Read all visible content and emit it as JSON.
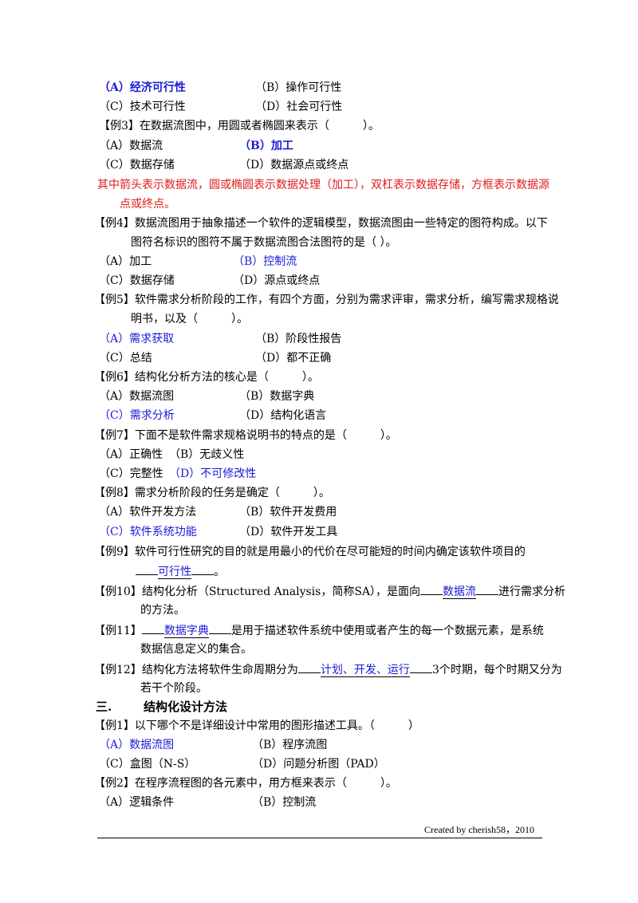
{
  "lines": [
    {
      "a": "（A）经济可行性",
      "b": "（B）操作可行性"
    },
    {
      "a": "（C）技术可行性",
      "b": "（D）社会可行性"
    },
    {
      "q": "【例3】在数据流图中，用圆或者椭圆来表示（　　　）。"
    },
    {
      "a": "（A）数据流",
      "b": "（B）加工"
    },
    {
      "a": "（C）数据存储",
      "b": "（D）数据源点或终点"
    },
    {
      "note1": "其中箭头表示数据流，圆或椭圆表示数据处理（加工），双杠表示数据存储，方框表示数据源",
      "note2": "点或终点。"
    },
    {
      "q1": "【例4】数据流图用于抽象描述一个软件的逻辑模型，数据流图由一些特定的图符构成。以下",
      "q2": "图符名标识的图符不属于数据流图合法图符的是（ ）。"
    },
    {
      "a": "（A）加工",
      "b": "（B）控制流"
    },
    {
      "a": "（C）数据存储",
      "b": "（D）源点或终点"
    },
    {
      "q1": "【例5】软件需求分析阶段的工作，有四个方面，分别为需求评审，需求分析，编写需求规格说",
      "q2": "明书，以及（　　　）。"
    },
    {
      "a": "（A）需求获取",
      "b": "（B）阶段性报告"
    },
    {
      "a": "（C）总结",
      "b": "（D）都不正确"
    },
    {
      "q": "【例6】结构化分析方法的核心是（　　　）。"
    },
    {
      "a": "（A）数据流图",
      "b": "（B）数据字典"
    },
    {
      "a": "（C）需求分析",
      "b": "（D）结构化语言"
    },
    {
      "q": "【例7】下面不是软件需求规格说明书的特点的是（　　　）。"
    },
    {
      "a": "（A）正确性",
      "b": "（B）无歧义性"
    },
    {
      "a": "（C）完整性",
      "b": "（D）不可修改性"
    },
    {
      "q": "【例8】需求分析阶段的任务是确定（　　　）。"
    },
    {
      "a": "（A）软件开发方法",
      "b": "（B）软件开发费用"
    },
    {
      "a": "（C）软件系统功能",
      "b": "（D）软件开发工具"
    }
  ],
  "fill": {
    "q9_pre": "【例9】软件可行性研究的目的就是用最小的代价在尽可能短的时间内确定该软件项目的",
    "q9_blank": "可行性",
    "q9_post": "。",
    "q10_pre": "【例10】结构化分析（Structured Analysis，简称SA），是面向",
    "q10_blank": "数据流",
    "q10_post": "进行需求分析",
    "q10_l2": "的方法。",
    "q11_pre": "【例11】",
    "q11_blank": "数据字典",
    "q11_post": "是用于描述软件系统中使用或者产生的每一个数据元素，是系统",
    "q11_l2": "数据信息定义的集合。",
    "q12_pre": "【例12】结构化方法将软件生命周期分为",
    "q12_blank": "计划、开发、运行",
    "q12_post": "3个时期，每个时期又分为",
    "q12_l2": "若干个阶段。"
  },
  "section": {
    "num": "三.",
    "title": "结构化设计方法"
  },
  "s3": {
    "q1": "【例1】以下哪个不是详细设计中常用的图形描述工具。（　　　）",
    "q1a": "（A）数据流图",
    "q1b": "（B）程序流图",
    "q1c": "（C）盒图（N-S）",
    "q1d": "（D）问题分析图（PAD）",
    "q2": "【例2】在程序流程图的各元素中，用方框来表示（　　　）。",
    "q2a": "（A）逻辑条件",
    "q2b": "（B）控制流"
  },
  "footer": "Created by cherish58，2010"
}
